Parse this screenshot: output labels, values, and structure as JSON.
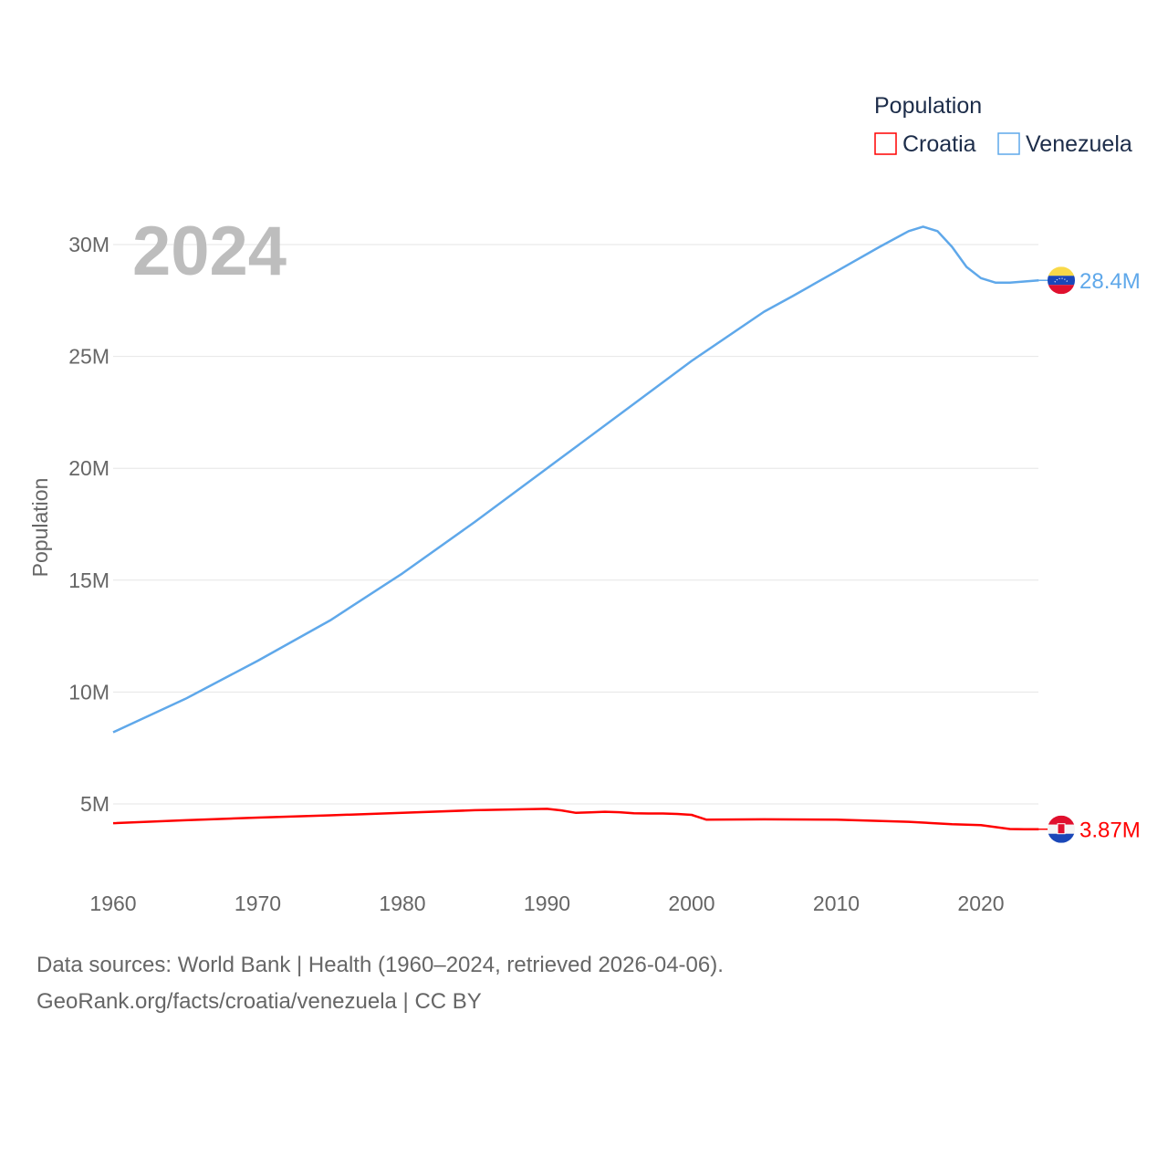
{
  "chart_data": {
    "type": "line",
    "title": "Population",
    "year_label": "2024",
    "ylabel": "Population",
    "xlabel": "",
    "xlim": [
      1960,
      2024
    ],
    "ylim": [
      0,
      32000000
    ],
    "x_ticks": [
      "1960",
      "1970",
      "1980",
      "1990",
      "2000",
      "2010",
      "2020"
    ],
    "y_ticks": [
      {
        "v": 5000000,
        "label": "5M"
      },
      {
        "v": 10000000,
        "label": "10M"
      },
      {
        "v": 15000000,
        "label": "15M"
      },
      {
        "v": 20000000,
        "label": "20M"
      },
      {
        "v": 25000000,
        "label": "25M"
      },
      {
        "v": 30000000,
        "label": "30M"
      }
    ],
    "grid": true,
    "legend_position": "top-right",
    "series": [
      {
        "name": "Croatia",
        "color": "#ff0000",
        "end_label": "3.87M",
        "points": [
          [
            1960,
            4.14
          ],
          [
            1965,
            4.27
          ],
          [
            1970,
            4.39
          ],
          [
            1975,
            4.49
          ],
          [
            1980,
            4.6
          ],
          [
            1985,
            4.72
          ],
          [
            1990,
            4.78
          ],
          [
            1991,
            4.71
          ],
          [
            1992,
            4.6
          ],
          [
            1993,
            4.62
          ],
          [
            1994,
            4.65
          ],
          [
            1995,
            4.63
          ],
          [
            1996,
            4.58
          ],
          [
            1997,
            4.57
          ],
          [
            1998,
            4.57
          ],
          [
            1999,
            4.55
          ],
          [
            2000,
            4.51
          ],
          [
            2001,
            4.3
          ],
          [
            2005,
            4.31
          ],
          [
            2010,
            4.3
          ],
          [
            2015,
            4.2
          ],
          [
            2018,
            4.09
          ],
          [
            2020,
            4.05
          ],
          [
            2022,
            3.88
          ],
          [
            2023,
            3.87
          ],
          [
            2024,
            3.87
          ]
        ]
      },
      {
        "name": "Venezuela",
        "color": "#5fa8ea",
        "end_label": "28.4M",
        "points": [
          [
            1960,
            8.2
          ],
          [
            1965,
            9.7
          ],
          [
            1970,
            11.4
          ],
          [
            1975,
            13.2
          ],
          [
            1980,
            15.3
          ],
          [
            1985,
            17.6
          ],
          [
            1990,
            20.0
          ],
          [
            1995,
            22.4
          ],
          [
            2000,
            24.8
          ],
          [
            2005,
            27.0
          ],
          [
            2007,
            27.7
          ],
          [
            2010,
            28.8
          ],
          [
            2013,
            29.9
          ],
          [
            2015,
            30.6
          ],
          [
            2016,
            30.8
          ],
          [
            2017,
            30.6
          ],
          [
            2018,
            29.9
          ],
          [
            2019,
            29.0
          ],
          [
            2020,
            28.5
          ],
          [
            2021,
            28.3
          ],
          [
            2022,
            28.3
          ],
          [
            2023,
            28.35
          ],
          [
            2024,
            28.4
          ]
        ]
      }
    ]
  },
  "footer": {
    "line1": "Data sources: World Bank | Health (1960–2024, retrieved 2026-04-06).",
    "line2": "GeoRank.org/facts/croatia/venezuela | CC BY"
  }
}
